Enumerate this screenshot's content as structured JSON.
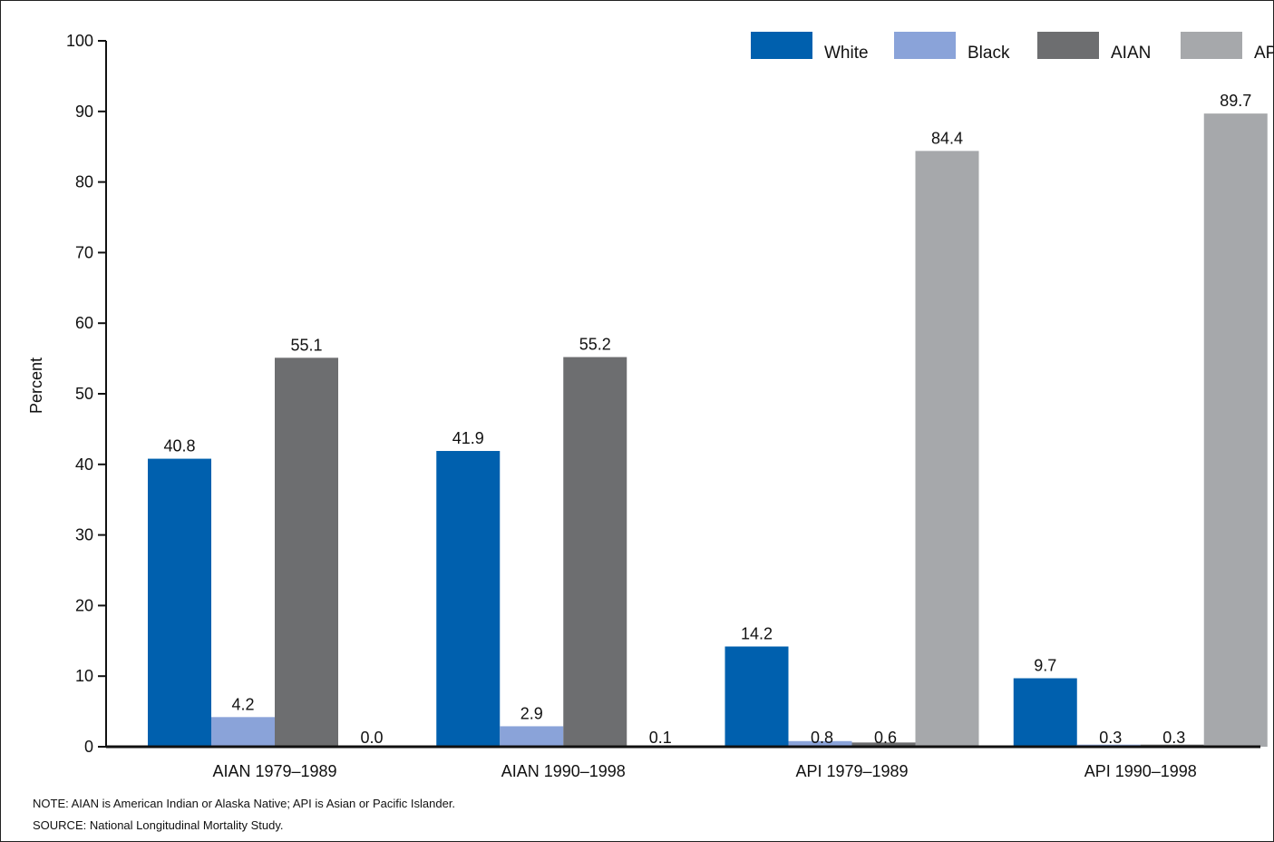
{
  "chart_data": {
    "type": "bar",
    "title": "",
    "xlabel": "",
    "ylabel": "Percent",
    "ylim": [
      0,
      100
    ],
    "yticks": [
      0,
      10,
      20,
      30,
      40,
      50,
      60,
      70,
      80,
      90,
      100
    ],
    "grid": false,
    "legend_position": "top-right",
    "categories": [
      "AIAN 1979–1989",
      "AIAN 1990–1998",
      "API 1979–1989",
      "API 1990–1998"
    ],
    "series": [
      {
        "name": "White",
        "color": "#0060ae",
        "values": [
          40.8,
          41.9,
          14.2,
          9.7
        ],
        "labels": [
          "40.8",
          "41.9",
          "14.2",
          "9.7"
        ]
      },
      {
        "name": "Black",
        "color": "#8aa3d9",
        "values": [
          4.2,
          2.9,
          0.8,
          0.3
        ],
        "labels": [
          "4.2",
          "2.9",
          "0.8",
          "0.3"
        ]
      },
      {
        "name": "AIAN",
        "color": "#6d6e70",
        "values": [
          55.1,
          55.2,
          0.6,
          0.3
        ],
        "labels": [
          "55.1",
          "55.2",
          "0.6",
          "0.3"
        ]
      },
      {
        "name": "API",
        "color": "#a6a8ab",
        "values": [
          0.0,
          0.1,
          84.4,
          89.7
        ],
        "labels": [
          "0.0",
          "0.1",
          "84.4",
          "89.7"
        ]
      }
    ]
  },
  "notes": {
    "note": "NOTE: AIAN is American Indian or Alaska Native; API is Asian or Pacific Islander.",
    "source": "SOURCE: National Longitudinal Mortality Study."
  }
}
